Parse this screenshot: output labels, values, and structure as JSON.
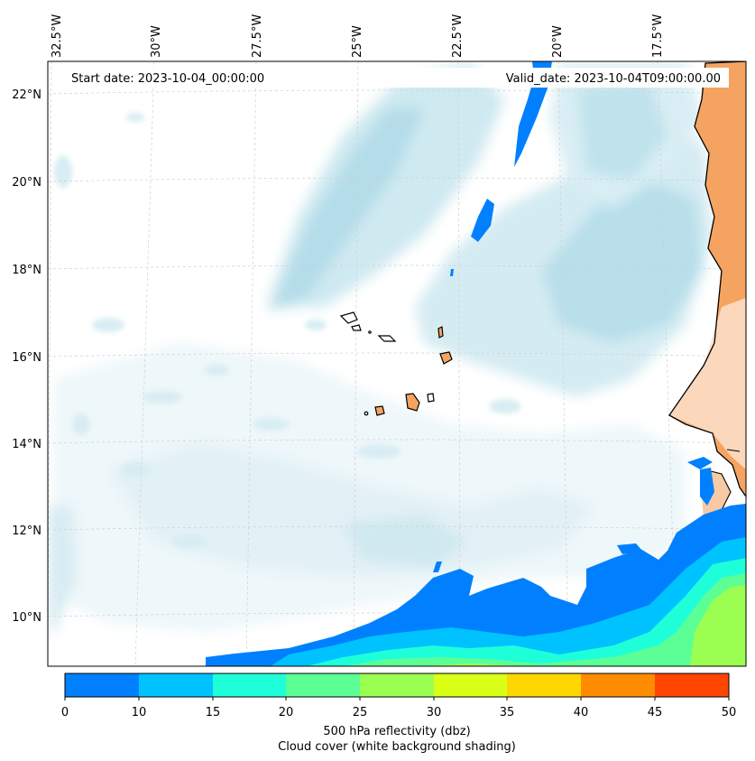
{
  "map": {
    "start_date_label": "Start date: 2023-10-04_00:00:00",
    "valid_date_label": "Valid_date: 2023-10-04T09:00:00.00",
    "longitude_labels": [
      "32.5°W",
      "30°W",
      "27.5°W",
      "25°W",
      "22.5°W",
      "20°W",
      "17.5°W"
    ],
    "latitude_labels": [
      "22°N",
      "20°N",
      "18°N",
      "16°N",
      "14°N",
      "12°N",
      "10°N"
    ],
    "colors": {
      "ocean": "#ffffff",
      "cloud_light": "#e6f4f8",
      "cloud_mid": "#c8e6ef",
      "cloud_dense": "#addbe8",
      "land": "#f5a35e",
      "land_light": "#fbe4d4",
      "coast": "#000000",
      "grid": "#c8c8c8"
    }
  },
  "colorbar": {
    "ticks": [
      "0",
      "10",
      "15",
      "20",
      "25",
      "30",
      "35",
      "40",
      "45",
      "50"
    ],
    "colors": [
      "#0080ff",
      "#00c2ff",
      "#1effd9",
      "#5cff96",
      "#9bff52",
      "#d9ff17",
      "#ffd700",
      "#ff8c00",
      "#ff4500"
    ],
    "label_line1": "500 hPa reflectivity (dbz)",
    "label_line2": "Cloud cover (white background shading)"
  }
}
